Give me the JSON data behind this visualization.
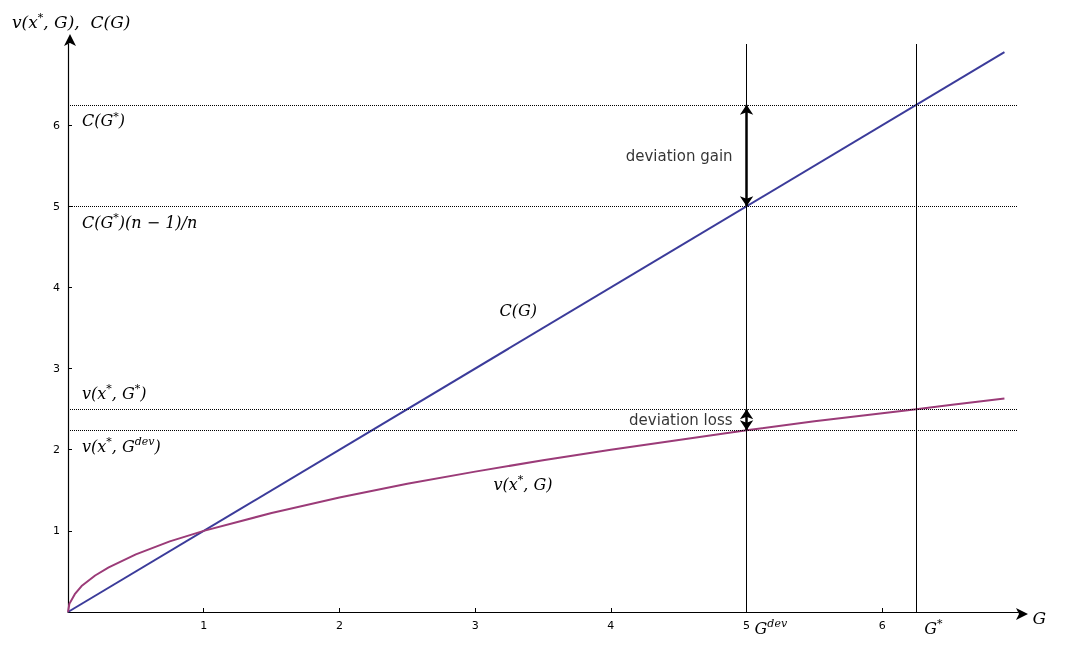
{
  "chart_data": {
    "type": "line",
    "xlabel": "G",
    "ylabel": "v(x$^{*}$, G),  C(G)",
    "xlim": [
      0,
      7
    ],
    "ylim": [
      0,
      7
    ],
    "xticks": [
      1,
      2,
      3,
      4,
      5,
      6
    ],
    "yticks": [
      1,
      2,
      3,
      4,
      5,
      6
    ],
    "grid": false,
    "legend": false,
    "series": [
      {
        "name": "C(G)",
        "color": "#3b3b9a",
        "x": [
          0,
          6.9
        ],
        "values": [
          0,
          6.9
        ]
      },
      {
        "name": "v(x$^{*}$, G)",
        "color": "#9b3b78",
        "x": [
          0,
          0.01,
          0.05,
          0.1,
          0.2,
          0.3,
          0.5,
          0.75,
          1,
          1.5,
          2,
          2.5,
          3,
          3.5,
          4,
          4.5,
          5,
          5.5,
          6,
          6.25,
          6.5,
          6.9
        ],
        "values": [
          0,
          0.1,
          0.22,
          0.32,
          0.45,
          0.55,
          0.71,
          0.87,
          1,
          1.22,
          1.41,
          1.58,
          1.73,
          1.87,
          2,
          2.12,
          2.24,
          2.35,
          2.45,
          2.5,
          2.55,
          2.63
        ]
      }
    ],
    "ref_lines": [
      {
        "axis": "y",
        "value": 6.25,
        "label": "C(G$^{*}$)",
        "color": "#000000",
        "line_style": "dotted"
      },
      {
        "axis": "y",
        "value": 5,
        "label": "C(G$^{*}$)(n − 1)/n",
        "color": "#000000",
        "line_style": "dotted"
      },
      {
        "axis": "y",
        "value": 2.5,
        "label": "v(x$^{*}$, G$^{*}$)",
        "color": "#000000",
        "line_style": "dotted"
      },
      {
        "axis": "y",
        "value": 2.24,
        "label": "v(x$^{*}$, G$^{dev}$)",
        "color": "#000000",
        "line_style": "dotted"
      },
      {
        "axis": "x",
        "value": 5,
        "label": "G$^{dev}$",
        "color": "#000000",
        "line_style": "solid"
      },
      {
        "axis": "x",
        "value": 6.25,
        "label": "G$^{*}$",
        "color": "#000000",
        "line_style": "solid"
      }
    ],
    "annotations": [
      {
        "text": "deviation gain",
        "x": 5,
        "y": 5.625
      },
      {
        "text": "deviation loss",
        "x": 5,
        "y": 2.37
      }
    ]
  }
}
